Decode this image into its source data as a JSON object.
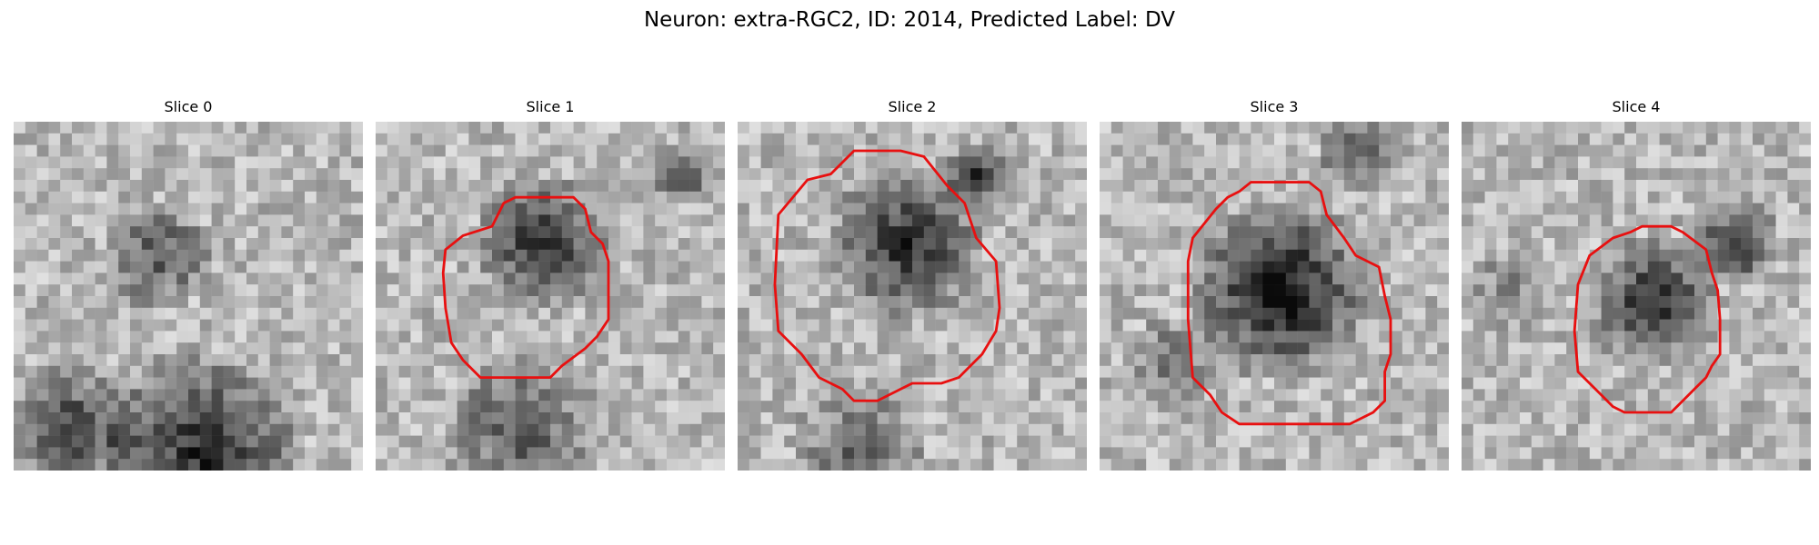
{
  "figure": {
    "title": "Neuron: extra-RGC2, ID: 2014, Predicted Label: DV"
  },
  "panels": [
    {
      "label": "Slice 0",
      "seed": 11,
      "contour": false
    },
    {
      "label": "Slice 1",
      "seed": 23,
      "contour": true
    },
    {
      "label": "Slice 2",
      "seed": 37,
      "contour": true
    },
    {
      "label": "Slice 3",
      "seed": 41,
      "contour": true
    },
    {
      "label": "Slice 4",
      "seed": 59,
      "contour": true
    }
  ],
  "colors": {
    "contour": "#e81010"
  }
}
